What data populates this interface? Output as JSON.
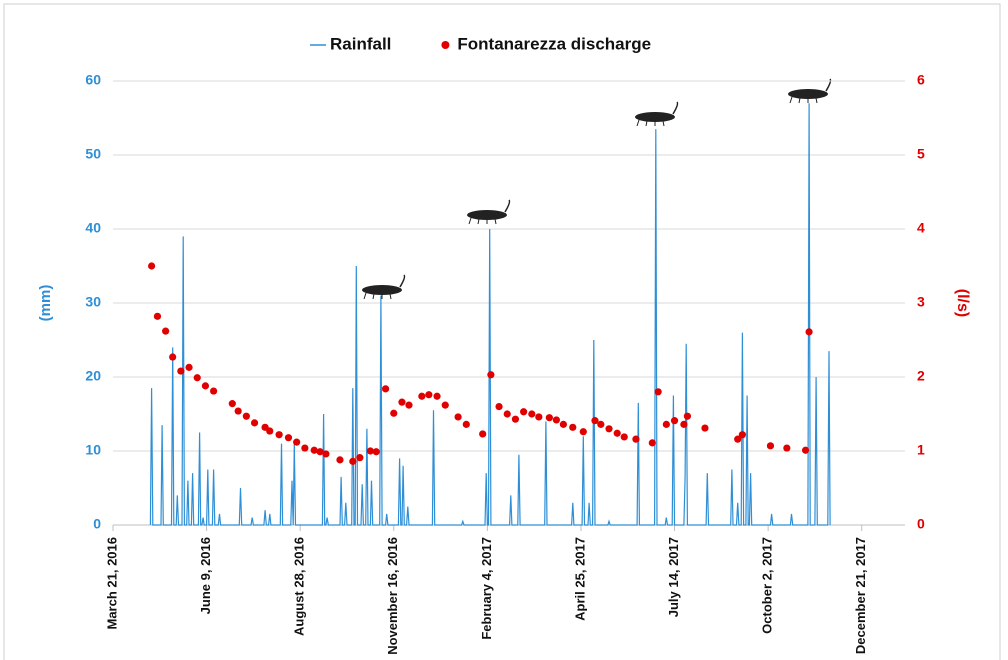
{
  "chart_data": {
    "type": "line",
    "ylabel": "(mm)",
    "y2label": "(l/s)",
    "xlim": [
      "2016-03-21",
      "2018-01-27"
    ],
    "xticks": [
      {
        "value": "2016-03-21",
        "label": "March 21, 2016"
      },
      {
        "value": "2016-06-09",
        "label": "June 9, 2016"
      },
      {
        "value": "2016-08-28",
        "label": "August 28, 2016"
      },
      {
        "value": "2016-11-16",
        "label": "November 16, 2016"
      },
      {
        "value": "2017-02-04",
        "label": "February 4, 2017"
      },
      {
        "value": "2017-04-25",
        "label": "April 25, 2017"
      },
      {
        "value": "2017-07-14",
        "label": "July 14, 2017"
      },
      {
        "value": "2017-10-02",
        "label": "October 2, 2017"
      },
      {
        "value": "2017-12-21",
        "label": "December 21, 2017"
      }
    ],
    "ylim": [
      0,
      60
    ],
    "yticks": [
      0,
      10,
      20,
      30,
      40,
      50,
      60
    ],
    "y2lim": [
      0,
      6
    ],
    "y2ticks": [
      0,
      1,
      2,
      3,
      4,
      5,
      6
    ],
    "grid": true,
    "legend": "top",
    "series": [
      {
        "name": "Rainfall",
        "type": "line",
        "color": "#2e8fd6",
        "x": [
          "2016-04-22",
          "2016-04-23",
          "2016-04-24",
          "2016-05-01",
          "2016-05-02",
          "2016-05-03",
          "2016-05-10",
          "2016-05-11",
          "2016-05-12",
          "2016-05-14",
          "2016-05-15",
          "2016-05-16",
          "2016-05-19",
          "2016-05-20",
          "2016-05-21",
          "2016-05-23",
          "2016-05-24",
          "2016-05-25",
          "2016-05-27",
          "2016-05-28",
          "2016-05-29",
          "2016-06-02",
          "2016-06-03",
          "2016-06-04",
          "2016-06-05",
          "2016-06-06",
          "2016-06-07",
          "2016-06-09",
          "2016-06-10",
          "2016-06-11",
          "2016-06-14",
          "2016-06-15",
          "2016-06-16",
          "2016-06-19",
          "2016-06-20",
          "2016-06-21",
          "2016-07-07",
          "2016-07-08",
          "2016-07-09",
          "2016-07-17",
          "2016-07-18",
          "2016-07-19",
          "2016-07-28",
          "2016-07-29",
          "2016-07-30",
          "2016-08-01",
          "2016-08-02",
          "2016-08-03",
          "2016-08-11",
          "2016-08-12",
          "2016-08-13",
          "2016-08-20",
          "2016-08-21",
          "2016-08-22",
          "2016-08-23",
          "2016-08-24",
          "2016-09-16",
          "2016-09-17",
          "2016-09-18",
          "2016-09-19",
          "2016-09-20",
          "2016-09-21",
          "2016-10-01",
          "2016-10-02",
          "2016-10-03",
          "2016-10-05",
          "2016-10-06",
          "2016-10-07",
          "2016-10-11",
          "2016-10-12",
          "2016-10-13",
          "2016-10-14",
          "2016-10-15",
          "2016-10-16",
          "2016-10-19",
          "2016-10-20",
          "2016-10-21",
          "2016-10-23",
          "2016-10-24",
          "2016-10-25",
          "2016-10-27",
          "2016-10-28",
          "2016-10-29",
          "2016-11-04",
          "2016-11-05",
          "2016-11-06",
          "2016-11-09",
          "2016-11-10",
          "2016-11-11",
          "2016-11-20",
          "2016-11-21",
          "2016-11-22",
          "2016-11-23",
          "2016-11-24",
          "2016-11-25",
          "2016-11-27",
          "2016-11-28",
          "2016-11-29",
          "2016-12-19",
          "2016-12-20",
          "2016-12-21",
          "2017-01-13",
          "2017-01-14",
          "2017-01-15",
          "2017-02-02",
          "2017-02-03",
          "2017-02-04",
          "2017-02-05",
          "2017-02-06",
          "2017-02-07",
          "2017-02-23",
          "2017-02-24",
          "2017-02-25",
          "2017-03-02",
          "2017-03-03",
          "2017-03-04",
          "2017-03-25",
          "2017-03-26",
          "2017-03-27",
          "2017-04-17",
          "2017-04-18",
          "2017-04-19",
          "2017-04-26",
          "2017-04-27",
          "2017-04-28",
          "2017-05-01",
          "2017-05-02",
          "2017-05-03",
          "2017-05-05",
          "2017-05-06",
          "2017-05-07",
          "2017-05-18",
          "2017-05-19",
          "2017-05-20",
          "2017-06-12",
          "2017-06-13",
          "2017-06-14",
          "2017-06-27",
          "2017-06-28",
          "2017-06-29",
          "2017-07-06",
          "2017-07-07",
          "2017-07-08",
          "2017-07-12",
          "2017-07-13",
          "2017-07-14",
          "2017-07-22",
          "2017-07-23",
          "2017-07-24",
          "2017-07-25",
          "2017-08-10",
          "2017-08-11",
          "2017-08-12",
          "2017-08-31",
          "2017-09-01",
          "2017-09-02",
          "2017-09-05",
          "2017-09-06",
          "2017-09-07",
          "2017-09-09",
          "2017-09-10",
          "2017-09-11",
          "2017-09-13",
          "2017-09-14",
          "2017-09-15",
          "2017-09-16",
          "2017-09-17",
          "2017-09-18",
          "2017-10-04",
          "2017-10-05",
          "2017-10-06",
          "2017-10-21",
          "2017-10-22",
          "2017-10-23",
          "2017-11-05",
          "2017-11-06",
          "2017-11-07",
          "2017-11-11",
          "2017-11-12",
          "2017-11-13",
          "2017-11-22",
          "2017-11-23",
          "2017-11-24"
        ],
        "values": [
          0,
          18.5,
          0,
          0,
          13.5,
          0,
          0,
          24,
          0,
          0,
          4,
          0,
          0,
          39,
          0,
          0,
          6,
          0,
          0,
          7,
          0,
          0,
          12.5,
          0,
          0,
          1,
          0,
          0,
          7.5,
          0,
          0,
          7.5,
          0,
          0,
          1.5,
          0,
          0,
          5,
          0,
          0,
          1,
          0,
          0,
          2,
          0,
          0,
          1.5,
          0,
          0,
          11,
          0,
          0,
          6,
          0,
          11,
          0,
          0,
          15,
          0,
          0,
          1,
          0,
          0,
          6.5,
          0,
          0,
          3,
          0,
          0,
          18.5,
          0,
          0,
          35,
          0,
          0,
          5.5,
          0,
          0,
          13,
          0,
          0,
          6,
          0,
          0,
          31,
          0,
          0,
          1.5,
          0,
          0,
          9,
          0,
          0,
          8,
          0,
          0,
          2.5,
          0,
          0,
          15.5,
          0,
          0,
          0.5,
          0,
          0,
          7,
          0,
          0,
          40,
          0,
          0,
          4,
          0,
          0,
          9.5,
          0,
          0,
          14,
          0,
          0,
          3,
          0,
          0,
          12,
          0,
          0,
          3,
          0,
          0,
          25,
          0,
          0,
          0.5,
          0,
          0,
          16.5,
          0,
          0,
          53.5,
          0,
          0,
          1,
          0,
          0,
          17.5,
          0,
          0,
          6.5,
          24.5,
          0,
          0,
          7,
          0,
          0,
          7.5,
          0,
          0,
          3,
          0,
          0,
          26,
          0,
          0,
          17.5,
          0,
          0,
          7,
          0,
          0,
          1.5,
          0,
          0,
          1.5,
          0,
          0,
          57,
          0,
          0,
          20,
          0,
          0,
          23.5,
          0
        ]
      },
      {
        "name": "Fontanarezza discharge",
        "type": "scatter",
        "color": "#e00000",
        "axis": "y2",
        "x": [
          "2016-04-23",
          "2016-04-28",
          "2016-05-05",
          "2016-05-11",
          "2016-05-18",
          "2016-05-25",
          "2016-06-01",
          "2016-06-08",
          "2016-06-15",
          "2016-07-01",
          "2016-07-06",
          "2016-07-13",
          "2016-07-20",
          "2016-07-29",
          "2016-08-02",
          "2016-08-10",
          "2016-08-18",
          "2016-08-25",
          "2016-09-01",
          "2016-09-09",
          "2016-09-14",
          "2016-09-19",
          "2016-10-01",
          "2016-10-12",
          "2016-10-18",
          "2016-10-27",
          "2016-11-01",
          "2016-11-09",
          "2016-11-16",
          "2016-11-23",
          "2016-11-29",
          "2016-12-10",
          "2016-12-16",
          "2016-12-23",
          "2016-12-30",
          "2017-01-10",
          "2017-01-17",
          "2017-01-31",
          "2017-02-07",
          "2017-02-14",
          "2017-02-21",
          "2017-02-28",
          "2017-03-07",
          "2017-03-14",
          "2017-03-20",
          "2017-03-29",
          "2017-04-04",
          "2017-04-10",
          "2017-04-18",
          "2017-04-27",
          "2017-05-07",
          "2017-05-12",
          "2017-05-19",
          "2017-05-26",
          "2017-06-01",
          "2017-06-11",
          "2017-06-25",
          "2017-06-30",
          "2017-07-07",
          "2017-07-14",
          "2017-07-22",
          "2017-07-25",
          "2017-08-09",
          "2017-09-06",
          "2017-09-10",
          "2017-10-04",
          "2017-10-18",
          "2017-11-03",
          "2017-11-06"
        ],
        "values": [
          3.5,
          2.82,
          2.62,
          2.27,
          2.08,
          2.13,
          1.99,
          1.88,
          1.81,
          1.64,
          1.54,
          1.47,
          1.38,
          1.32,
          1.27,
          1.22,
          1.18,
          1.12,
          1.04,
          1.01,
          0.99,
          0.96,
          0.88,
          0.86,
          0.91,
          1.0,
          0.99,
          1.84,
          1.51,
          1.66,
          1.62,
          1.74,
          1.76,
          1.74,
          1.62,
          1.46,
          1.36,
          1.23,
          2.03,
          1.6,
          1.5,
          1.43,
          1.53,
          1.5,
          1.46,
          1.45,
          1.42,
          1.36,
          1.32,
          1.26,
          1.41,
          1.36,
          1.3,
          1.24,
          1.19,
          1.16,
          1.11,
          1.8,
          1.36,
          1.41,
          1.36,
          1.47,
          1.31,
          1.16,
          1.22,
          1.07,
          1.04,
          1.01,
          2.61
        ]
      }
    ]
  }
}
